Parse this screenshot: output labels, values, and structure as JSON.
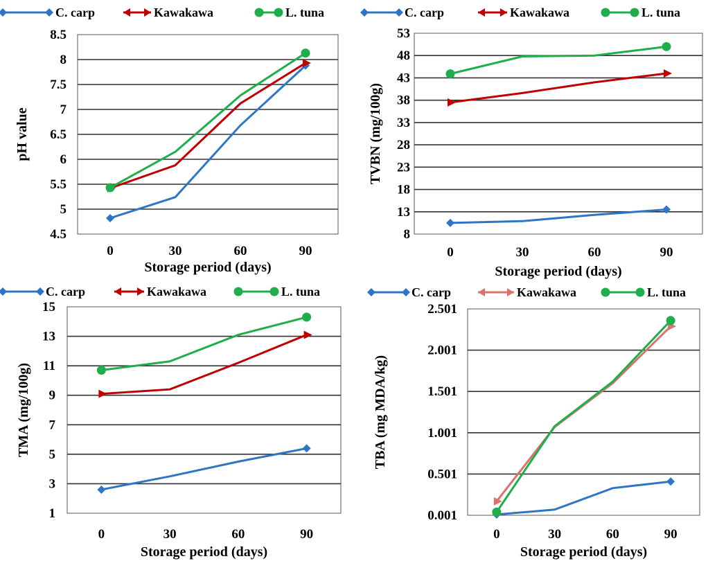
{
  "colors": {
    "c_carp": "#2E75C6",
    "kawakawa": "#C00000",
    "kawakawa_tba": "#D9736B",
    "l_tuna": "#1FAE4B"
  },
  "chart_data": [
    {
      "type": "line",
      "x": [
        0,
        30,
        60,
        90
      ],
      "xlabel": "Storage period (days)",
      "ylabel": "pH value",
      "ylim": [
        4.5,
        8.5
      ],
      "yticks": [
        "4.5",
        "5",
        "5.5",
        "6",
        "6.5",
        "7",
        "7.5",
        "8",
        "8.5"
      ],
      "xticks": [
        "0",
        "30",
        "60",
        "90"
      ],
      "grid": true,
      "legend": "top",
      "series": [
        {
          "name": "C. carp",
          "marker": "diamond",
          "values": [
            4.82,
            5.24,
            6.68,
            7.88
          ]
        },
        {
          "name": "Kawakawa",
          "marker": "arrow",
          "values": [
            5.42,
            5.88,
            7.12,
            7.93
          ]
        },
        {
          "name": "L. tuna",
          "marker": "circle",
          "values": [
            5.43,
            6.15,
            7.28,
            8.13
          ]
        }
      ]
    },
    {
      "type": "line",
      "x": [
        0,
        30,
        60,
        90
      ],
      "xlabel": "Storage period (days)",
      "ylabel": "TVBN (mg/100g)",
      "ylim": [
        8,
        53
      ],
      "yticks": [
        "8",
        "13",
        "18",
        "23",
        "28",
        "33",
        "38",
        "43",
        "48",
        "53"
      ],
      "xticks": [
        "0",
        "30",
        "60",
        "90"
      ],
      "grid": true,
      "legend": "top",
      "series": [
        {
          "name": "C. carp",
          "marker": "diamond",
          "values": [
            10.5,
            10.9,
            12.3,
            13.5
          ]
        },
        {
          "name": "Kawakawa",
          "marker": "arrow",
          "values": [
            37.5,
            39.6,
            42.0,
            44.0
          ]
        },
        {
          "name": "L. tuna",
          "marker": "circle",
          "values": [
            43.9,
            47.8,
            48.0,
            50.0
          ]
        }
      ]
    },
    {
      "type": "line",
      "x": [
        0,
        30,
        60,
        90
      ],
      "xlabel": "Storage period (days)",
      "ylabel": "TMA (mg/100g)",
      "ylim": [
        1,
        15
      ],
      "yticks": [
        "1",
        "3",
        "5",
        "7",
        "9",
        "11",
        "13",
        "15"
      ],
      "xticks": [
        "0",
        "30",
        "60",
        "90"
      ],
      "grid": true,
      "legend": "top",
      "series": [
        {
          "name": "C. carp",
          "marker": "diamond",
          "values": [
            2.6,
            3.5,
            4.5,
            5.4
          ]
        },
        {
          "name": "Kawakawa",
          "marker": "arrow",
          "values": [
            9.1,
            9.4,
            11.2,
            13.1
          ]
        },
        {
          "name": "L. tuna",
          "marker": "circle",
          "values": [
            10.7,
            11.3,
            13.1,
            14.3
          ]
        }
      ]
    },
    {
      "type": "line",
      "x": [
        0,
        30,
        60,
        90
      ],
      "xlabel": "Storage period (days)",
      "ylabel": "TBA (mg MDA/kg)",
      "ylim": [
        0.001,
        2.501
      ],
      "yticks": [
        "0.001",
        "0.501",
        "1.001",
        "1.501",
        "2.001",
        "2.501"
      ],
      "xticks": [
        "0",
        "30",
        "60",
        "90"
      ],
      "grid": true,
      "legend": "top",
      "series": [
        {
          "name": "C. carp",
          "marker": "diamond",
          "values": [
            0.01,
            0.07,
            0.33,
            0.41
          ]
        },
        {
          "name": "Kawakawa",
          "marker": "arrow",
          "values": [
            0.17,
            1.07,
            1.6,
            2.29
          ]
        },
        {
          "name": "L. tuna",
          "marker": "circle",
          "values": [
            0.04,
            1.08,
            1.62,
            2.36
          ]
        }
      ]
    }
  ]
}
